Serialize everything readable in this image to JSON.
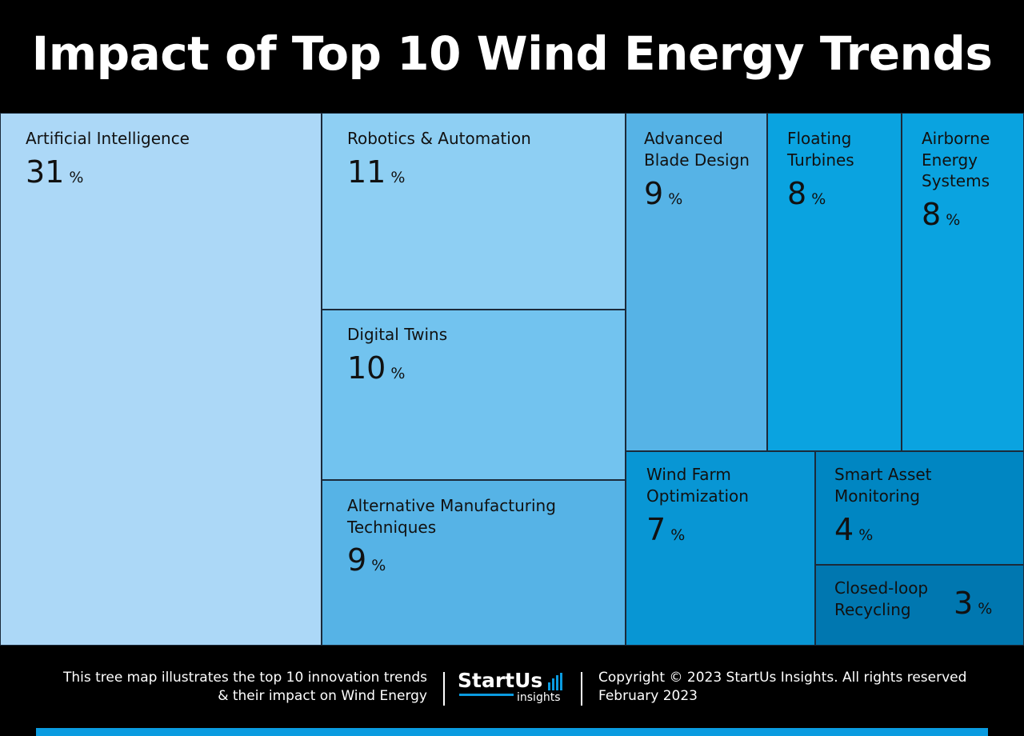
{
  "chart_data": {
    "type": "treemap",
    "title": "Impact of Top 10 Wind Energy Trends",
    "unit": "%",
    "items": [
      {
        "label": "Artificial Intelligence",
        "value": 31,
        "color": "#acd8f7"
      },
      {
        "label": "Robotics & Automation",
        "value": 11,
        "color": "#8ecff3"
      },
      {
        "label": "Digital Twins",
        "value": 10,
        "color": "#72c3ef"
      },
      {
        "label": "Alternative Manufacturing\nTechniques",
        "value": 9,
        "color": "#56b3e6"
      },
      {
        "label": "Advanced\nBlade Design",
        "value": 9,
        "color": "#56b3e6"
      },
      {
        "label": "Floating\nTurbines",
        "value": 8,
        "color": "#0aa3e0"
      },
      {
        "label": "Airborne\nEnergy\nSystems",
        "value": 8,
        "color": "#0aa3e0"
      },
      {
        "label": "Wind Farm\nOptimization",
        "value": 7,
        "color": "#0896d4"
      },
      {
        "label": "Smart Asset\nMonitoring",
        "value": 4,
        "color": "#0086c2"
      },
      {
        "label": "Closed-loop\nRecycling",
        "value": 3,
        "color": "#0077b0"
      }
    ]
  },
  "footer": {
    "description_line1": "This tree map illustrates the top 10 innovation trends",
    "description_line2": "& their impact on Wind Energy",
    "logo_main": "StartUs",
    "logo_sub": "insights",
    "copyright": "Copyright © 2023 StartUs Insights. All rights reserved",
    "date": "February 2023"
  },
  "colors": {
    "accent": "#0a9be0",
    "background": "#000000"
  }
}
